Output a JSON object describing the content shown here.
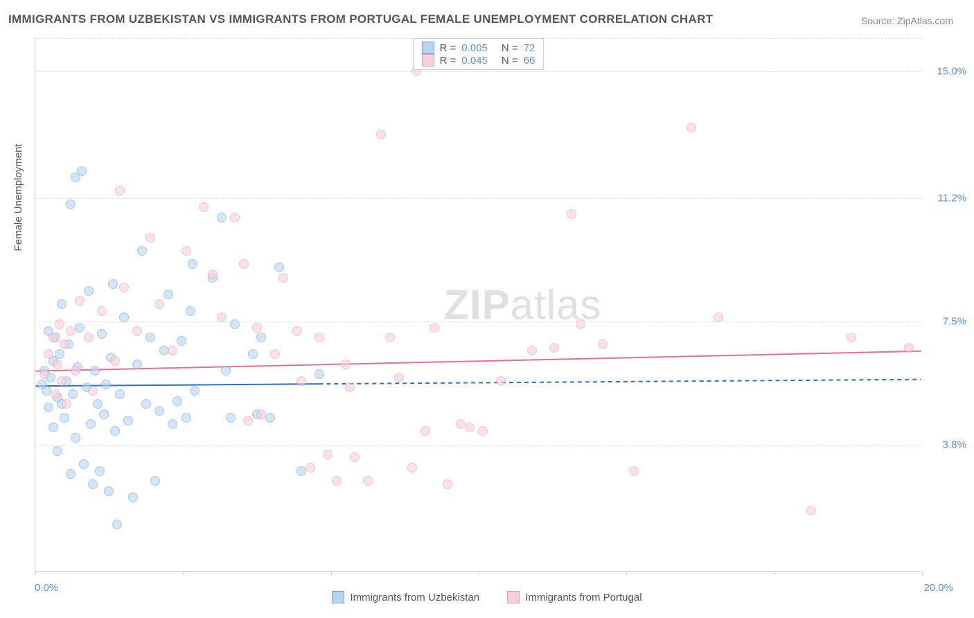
{
  "title": "IMMIGRANTS FROM UZBEKISTAN VS IMMIGRANTS FROM PORTUGAL FEMALE UNEMPLOYMENT CORRELATION CHART",
  "source": "Source: ZipAtlas.com",
  "watermark_bold": "ZIP",
  "watermark_light": "atlas",
  "y_axis_title": "Female Unemployment",
  "chart": {
    "type": "scatter",
    "xlim": [
      0,
      20
    ],
    "ylim": [
      0,
      16
    ],
    "background_color": "#ffffff",
    "grid_color": "#dddddd",
    "axis_color": "#cccccc",
    "label_color": "#5b8fd6",
    "title_color": "#555555",
    "marker_radius": 7,
    "marker_opacity": 0.6,
    "x_label_min": "0.0%",
    "x_label_max": "20.0%",
    "y_ticks": [
      {
        "value": 3.8,
        "label": "3.8%"
      },
      {
        "value": 7.5,
        "label": "7.5%"
      },
      {
        "value": 11.2,
        "label": "11.2%"
      },
      {
        "value": 15.0,
        "label": "15.0%"
      }
    ],
    "x_tick_positions": [
      0,
      3.33,
      6.67,
      10,
      13.33,
      16.67,
      20
    ]
  },
  "legend_top": [
    {
      "r_label": "R =",
      "r": "0.005",
      "n_label": "N =",
      "n": "72"
    },
    {
      "r_label": "R =",
      "r": "0.045",
      "n_label": "N =",
      "n": "66"
    }
  ],
  "series": [
    {
      "name": "Immigrants from Uzbekistan",
      "fill": "#b9d4ef",
      "stroke": "#6fa6de",
      "line_color": "#2e6fc1",
      "trend": {
        "y_at_x0": 5.55,
        "y_at_xmax": 5.75,
        "x_solid_end": 6.4
      },
      "points": [
        [
          0.15,
          5.6
        ],
        [
          0.2,
          6.0
        ],
        [
          0.25,
          5.4
        ],
        [
          0.3,
          7.2
        ],
        [
          0.3,
          4.9
        ],
        [
          0.35,
          5.8
        ],
        [
          0.4,
          6.3
        ],
        [
          0.4,
          4.3
        ],
        [
          0.45,
          7.0
        ],
        [
          0.5,
          5.2
        ],
        [
          0.5,
          3.6
        ],
        [
          0.55,
          6.5
        ],
        [
          0.6,
          5.0
        ],
        [
          0.6,
          8.0
        ],
        [
          0.65,
          4.6
        ],
        [
          0.7,
          5.7
        ],
        [
          0.75,
          6.8
        ],
        [
          0.8,
          11.0
        ],
        [
          0.8,
          2.9
        ],
        [
          0.85,
          5.3
        ],
        [
          0.9,
          11.8
        ],
        [
          0.9,
          4.0
        ],
        [
          0.95,
          6.1
        ],
        [
          1.0,
          7.3
        ],
        [
          1.05,
          12.0
        ],
        [
          1.1,
          3.2
        ],
        [
          1.15,
          5.5
        ],
        [
          1.2,
          8.4
        ],
        [
          1.25,
          4.4
        ],
        [
          1.3,
          2.6
        ],
        [
          1.35,
          6.0
        ],
        [
          1.4,
          5.0
        ],
        [
          1.45,
          3.0
        ],
        [
          1.5,
          7.1
        ],
        [
          1.55,
          4.7
        ],
        [
          1.6,
          5.6
        ],
        [
          1.65,
          2.4
        ],
        [
          1.7,
          6.4
        ],
        [
          1.75,
          8.6
        ],
        [
          1.8,
          4.2
        ],
        [
          1.85,
          1.4
        ],
        [
          1.9,
          5.3
        ],
        [
          2.0,
          7.6
        ],
        [
          2.1,
          4.5
        ],
        [
          2.2,
          2.2
        ],
        [
          2.3,
          6.2
        ],
        [
          2.4,
          9.6
        ],
        [
          2.5,
          5.0
        ],
        [
          2.6,
          7.0
        ],
        [
          2.7,
          2.7
        ],
        [
          2.8,
          4.8
        ],
        [
          2.9,
          6.6
        ],
        [
          3.0,
          8.3
        ],
        [
          3.1,
          4.4
        ],
        [
          3.2,
          5.1
        ],
        [
          3.3,
          6.9
        ],
        [
          3.4,
          4.6
        ],
        [
          3.5,
          7.8
        ],
        [
          3.55,
          9.2
        ],
        [
          3.6,
          5.4
        ],
        [
          4.0,
          8.8
        ],
        [
          4.2,
          10.6
        ],
        [
          4.3,
          6.0
        ],
        [
          4.4,
          4.6
        ],
        [
          4.5,
          7.4
        ],
        [
          4.9,
          6.5
        ],
        [
          5.0,
          4.7
        ],
        [
          5.1,
          7.0
        ],
        [
          5.3,
          4.6
        ],
        [
          5.5,
          9.1
        ],
        [
          6.0,
          3.0
        ],
        [
          6.4,
          5.9
        ]
      ]
    },
    {
      "name": "Immigrants from Portugal",
      "fill": "#f7cedb",
      "stroke": "#ea9ab2",
      "line_color": "#e86e8e",
      "trend": {
        "y_at_x0": 6.0,
        "y_at_xmax": 6.6,
        "x_solid_end": 20
      },
      "points": [
        [
          0.2,
          5.9
        ],
        [
          0.3,
          6.5
        ],
        [
          0.4,
          7.0
        ],
        [
          0.45,
          5.3
        ],
        [
          0.5,
          6.2
        ],
        [
          0.55,
          7.4
        ],
        [
          0.6,
          5.7
        ],
        [
          0.65,
          6.8
        ],
        [
          0.7,
          5.0
        ],
        [
          0.8,
          7.2
        ],
        [
          0.9,
          6.0
        ],
        [
          1.0,
          8.1
        ],
        [
          1.2,
          7.0
        ],
        [
          1.3,
          5.4
        ],
        [
          1.5,
          7.8
        ],
        [
          1.8,
          6.3
        ],
        [
          1.9,
          11.4
        ],
        [
          2.0,
          8.5
        ],
        [
          2.3,
          7.2
        ],
        [
          2.6,
          10.0
        ],
        [
          2.8,
          8.0
        ],
        [
          3.1,
          6.6
        ],
        [
          3.4,
          9.6
        ],
        [
          3.8,
          10.9
        ],
        [
          4.0,
          8.9
        ],
        [
          4.2,
          7.6
        ],
        [
          4.5,
          10.6
        ],
        [
          4.7,
          9.2
        ],
        [
          4.8,
          4.5
        ],
        [
          5.0,
          7.3
        ],
        [
          5.1,
          4.7
        ],
        [
          5.4,
          6.5
        ],
        [
          5.6,
          8.8
        ],
        [
          5.9,
          7.2
        ],
        [
          6.0,
          5.7
        ],
        [
          6.2,
          3.1
        ],
        [
          6.4,
          7.0
        ],
        [
          6.6,
          3.5
        ],
        [
          6.8,
          2.7
        ],
        [
          7.0,
          6.2
        ],
        [
          7.1,
          5.5
        ],
        [
          7.2,
          3.4
        ],
        [
          7.5,
          2.7
        ],
        [
          7.8,
          13.1
        ],
        [
          8.0,
          7.0
        ],
        [
          8.2,
          5.8
        ],
        [
          8.5,
          3.1
        ],
        [
          8.6,
          15.0
        ],
        [
          8.8,
          4.2
        ],
        [
          9.0,
          7.3
        ],
        [
          9.3,
          2.6
        ],
        [
          9.6,
          4.4
        ],
        [
          9.8,
          4.3
        ],
        [
          10.1,
          4.2
        ],
        [
          10.5,
          5.7
        ],
        [
          11.2,
          6.6
        ],
        [
          11.7,
          6.7
        ],
        [
          12.1,
          10.7
        ],
        [
          12.3,
          7.4
        ],
        [
          12.8,
          6.8
        ],
        [
          13.5,
          3.0
        ],
        [
          14.8,
          13.3
        ],
        [
          15.4,
          7.6
        ],
        [
          17.5,
          1.8
        ],
        [
          18.4,
          7.0
        ],
        [
          19.7,
          6.7
        ]
      ]
    }
  ],
  "legend_bottom": [
    {
      "label": "Immigrants from Uzbekistan"
    },
    {
      "label": "Immigrants from Portugal"
    }
  ]
}
